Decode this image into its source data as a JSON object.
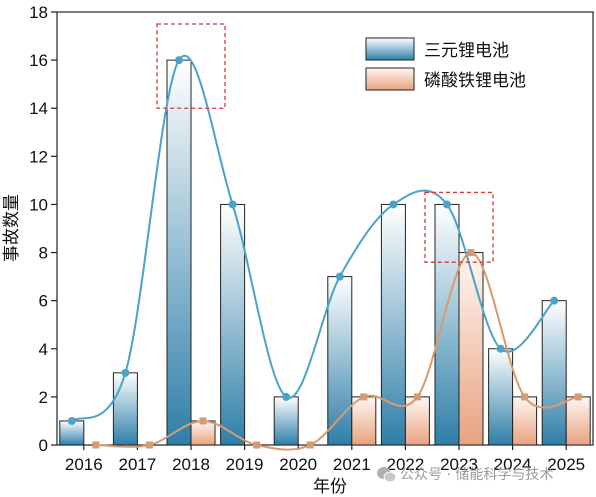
{
  "chart_data": {
    "type": "bar",
    "categories": [
      "2016",
      "2017",
      "2018",
      "2019",
      "2020",
      "2021",
      "2022",
      "2023",
      "2024",
      "2025"
    ],
    "series": [
      {
        "name": "三元锂电池",
        "values": [
          1,
          3,
          16,
          10,
          2,
          7,
          10,
          10,
          4,
          6
        ],
        "color": "#2e7ea8",
        "line_color": "#4aa3c8"
      },
      {
        "name": "磷酸铁锂电池",
        "values": [
          0,
          0,
          1,
          0,
          0,
          2,
          2,
          8,
          2,
          2
        ],
        "color": "#e8a27f",
        "line_color": "#d89a70"
      }
    ],
    "xlabel": "年份",
    "ylabel": "事故数量",
    "ylim": [
      0,
      18
    ],
    "yticks": [
      0,
      2,
      4,
      6,
      8,
      10,
      12,
      14,
      16,
      18
    ],
    "legend_position": "top-right",
    "highlights": [
      {
        "category": "2018",
        "y_range": [
          14,
          17.5
        ]
      },
      {
        "category": "2023",
        "y_range": [
          7.6,
          10.5
        ]
      }
    ]
  },
  "watermark": {
    "text": "公众号 · 储能科学与技术",
    "icon": "wechat-icon"
  }
}
